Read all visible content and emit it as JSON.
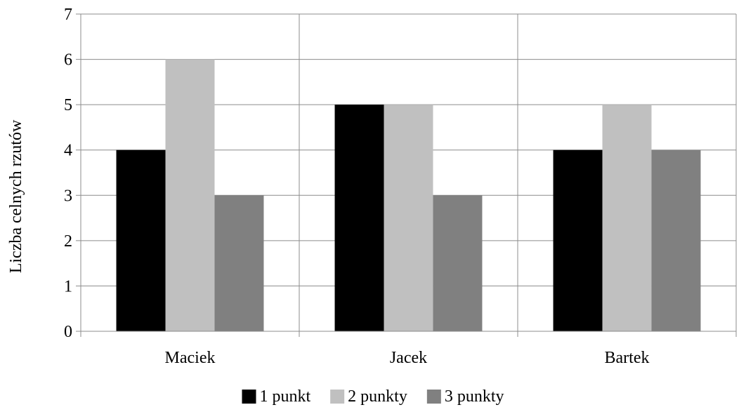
{
  "chart_data": {
    "type": "bar",
    "title": "",
    "xlabel": "",
    "ylabel": "Liczba celnych rzutów",
    "categories": [
      "Maciek",
      "Jacek",
      "Bartek"
    ],
    "series": [
      {
        "name": "1 punkt",
        "values": [
          4,
          5,
          4
        ],
        "color": "#000000"
      },
      {
        "name": "2 punkty",
        "values": [
          6,
          5,
          5
        ],
        "color": "#c0c0c0"
      },
      {
        "name": "3 punkty",
        "values": [
          3,
          3,
          4
        ],
        "color": "#808080"
      }
    ],
    "ylim": [
      0,
      7
    ],
    "yticks": [
      "0",
      "1",
      "2",
      "3",
      "4",
      "5",
      "6",
      "7"
    ],
    "grid": true,
    "legend": "bottom"
  }
}
